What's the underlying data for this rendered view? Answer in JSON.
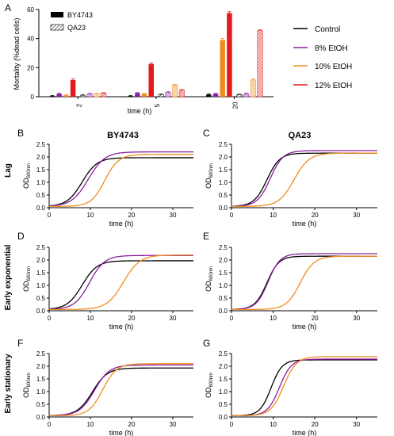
{
  "colors": {
    "control": "#000000",
    "etoh8": "#8B1E9E",
    "etoh10": "#F08C1E",
    "etoh12": "#E41A1C",
    "etoh8_light": "#E3C3EA",
    "etoh10_light": "#FBE0C0",
    "etoh12_light": "#F6C3C3",
    "axis": "#000000"
  },
  "legend_treatments": [
    {
      "label": "Control",
      "color_key": "control"
    },
    {
      "label": "8% EtOH",
      "color_key": "etoh8"
    },
    {
      "label": "10% EtOH",
      "color_key": "etoh10"
    },
    {
      "label": "12% EtOH",
      "color_key": "etoh12"
    }
  ],
  "chart_data": [
    {
      "id": "A",
      "panel_letter": "A",
      "type": "bar",
      "ylabel": "Mortality (%dead cells)",
      "xlabel": "time (h)",
      "ylim": [
        0,
        60
      ],
      "yticks": [
        0,
        20,
        40,
        60
      ],
      "categories": [
        "2",
        "5",
        "20"
      ],
      "strain_legend": [
        {
          "label": "BY4743",
          "pattern": "solid"
        },
        {
          "label": "QA23",
          "pattern": "hatched"
        }
      ],
      "series": [
        {
          "strain": "BY4743",
          "treatment": "Control",
          "values": [
            0.5,
            0.5,
            1.5
          ],
          "errors": [
            0.3,
            0.3,
            0.5
          ]
        },
        {
          "strain": "BY4743",
          "treatment": "8% EtOH",
          "values": [
            2,
            2.5,
            2
          ],
          "errors": [
            0.4,
            0.4,
            0.4
          ]
        },
        {
          "strain": "BY4743",
          "treatment": "10% EtOH",
          "values": [
            1,
            2,
            39
          ],
          "errors": [
            0.3,
            0.4,
            1
          ]
        },
        {
          "strain": "BY4743",
          "treatment": "12% EtOH",
          "values": [
            11.5,
            22.5,
            57.5
          ],
          "errors": [
            0.8,
            0.8,
            1
          ]
        },
        {
          "strain": "QA23",
          "treatment": "Control",
          "values": [
            1,
            1.5,
            1.5
          ],
          "errors": [
            0.3,
            0.3,
            0.3
          ]
        },
        {
          "strain": "QA23",
          "treatment": "8% EtOH",
          "values": [
            2,
            3,
            2
          ],
          "errors": [
            0.3,
            0.4,
            0.4
          ]
        },
        {
          "strain": "QA23",
          "treatment": "10% EtOH",
          "values": [
            2,
            8,
            11.5
          ],
          "errors": [
            0.3,
            0.5,
            0.6
          ]
        },
        {
          "strain": "QA23",
          "treatment": "12% EtOH",
          "values": [
            2.5,
            4.5,
            45.5
          ],
          "errors": [
            0.3,
            0.4,
            0.5
          ]
        }
      ]
    },
    {
      "id": "B",
      "panel_letter": "B",
      "type": "line",
      "title": "BY4743",
      "row_label": "Lag",
      "xlabel": "time (h)",
      "xlim": [
        0,
        35
      ],
      "xticks": [
        0,
        10,
        20,
        30
      ],
      "ylim": [
        0,
        2.5
      ],
      "yticks": [
        0.0,
        0.5,
        1.0,
        1.5,
        2.0,
        2.5
      ],
      "series": [
        {
          "name": "Control",
          "logistic": {
            "base": 0.05,
            "top": 1.97,
            "midpoint": 8.0,
            "rate": 0.55
          }
        },
        {
          "name": "8% EtOH",
          "logistic": {
            "base": 0.05,
            "top": 2.2,
            "midpoint": 9.5,
            "rate": 0.5
          }
        },
        {
          "name": "10% EtOH",
          "logistic": {
            "base": 0.05,
            "top": 2.1,
            "midpoint": 13.5,
            "rate": 0.6
          }
        }
      ]
    },
    {
      "id": "C",
      "panel_letter": "C",
      "type": "line",
      "title": "QA23",
      "xlabel": "time (h)",
      "xlim": [
        0,
        35
      ],
      "xticks": [
        0,
        10,
        20,
        30
      ],
      "ylim": [
        0,
        2.5
      ],
      "yticks": [
        0.0,
        0.5,
        1.0,
        1.5,
        2.0,
        2.5
      ],
      "series": [
        {
          "name": "Control",
          "logistic": {
            "base": 0.05,
            "top": 2.15,
            "midpoint": 8.5,
            "rate": 0.65
          }
        },
        {
          "name": "8% EtOH",
          "logistic": {
            "base": 0.05,
            "top": 2.25,
            "midpoint": 9.3,
            "rate": 0.65
          }
        },
        {
          "name": "10% EtOH",
          "logistic": {
            "base": 0.05,
            "top": 2.15,
            "midpoint": 15.0,
            "rate": 0.55
          }
        }
      ]
    },
    {
      "id": "D",
      "panel_letter": "D",
      "type": "line",
      "row_label": "Early exponential",
      "xlabel": "time (h)",
      "xlim": [
        0,
        35
      ],
      "xticks": [
        0,
        10,
        20,
        30
      ],
      "ylim": [
        0,
        2.5
      ],
      "yticks": [
        0.0,
        0.5,
        1.0,
        1.5,
        2.0,
        2.5
      ],
      "series": [
        {
          "name": "Control",
          "logistic": {
            "base": 0.05,
            "top": 1.97,
            "midpoint": 8.0,
            "rate": 0.55
          }
        },
        {
          "name": "8% EtOH",
          "logistic": {
            "base": 0.05,
            "top": 2.18,
            "midpoint": 9.8,
            "rate": 0.55
          }
        },
        {
          "name": "10% EtOH",
          "logistic": {
            "base": 0.05,
            "top": 2.2,
            "midpoint": 18.0,
            "rate": 0.5
          }
        }
      ]
    },
    {
      "id": "E",
      "panel_letter": "E",
      "type": "line",
      "xlabel": "time (h)",
      "xlim": [
        0,
        35
      ],
      "xticks": [
        0,
        10,
        20,
        30
      ],
      "ylim": [
        0,
        2.5
      ],
      "yticks": [
        0.0,
        0.5,
        1.0,
        1.5,
        2.0,
        2.5
      ],
      "series": [
        {
          "name": "Control",
          "logistic": {
            "base": 0.05,
            "top": 2.15,
            "midpoint": 8.5,
            "rate": 0.7
          }
        },
        {
          "name": "8% EtOH",
          "logistic": {
            "base": 0.05,
            "top": 2.25,
            "midpoint": 8.8,
            "rate": 0.7
          }
        },
        {
          "name": "10% EtOH",
          "logistic": {
            "base": 0.05,
            "top": 2.15,
            "midpoint": 16.5,
            "rate": 0.6
          }
        }
      ]
    },
    {
      "id": "F",
      "panel_letter": "F",
      "type": "line",
      "row_label": "Early stationary",
      "xlabel": "time (h)",
      "xlim": [
        0,
        35
      ],
      "xticks": [
        0,
        10,
        20,
        30
      ],
      "ylim": [
        0,
        2.5
      ],
      "yticks": [
        0.0,
        0.5,
        1.0,
        1.5,
        2.0,
        2.5
      ],
      "series": [
        {
          "name": "Control",
          "logistic": {
            "base": 0.05,
            "top": 1.93,
            "midpoint": 10.5,
            "rate": 0.55
          }
        },
        {
          "name": "8% EtOH",
          "logistic": {
            "base": 0.05,
            "top": 2.05,
            "midpoint": 11.0,
            "rate": 0.55
          }
        },
        {
          "name": "10% EtOH",
          "logistic": {
            "base": 0.05,
            "top": 2.1,
            "midpoint": 13.0,
            "rate": 0.6
          }
        }
      ]
    },
    {
      "id": "G",
      "panel_letter": "G",
      "type": "line",
      "xlabel": "time (h)",
      "xlim": [
        0,
        35
      ],
      "xticks": [
        0,
        10,
        20,
        30
      ],
      "ylim": [
        0,
        2.5
      ],
      "yticks": [
        0.0,
        0.5,
        1.0,
        1.5,
        2.0,
        2.5
      ],
      "series": [
        {
          "name": "Control",
          "logistic": {
            "base": 0.05,
            "top": 2.25,
            "midpoint": 9.5,
            "rate": 0.75
          }
        },
        {
          "name": "8% EtOH",
          "logistic": {
            "base": 0.05,
            "top": 2.28,
            "midpoint": 11.5,
            "rate": 0.7
          }
        },
        {
          "name": "10% EtOH",
          "logistic": {
            "base": 0.05,
            "top": 2.38,
            "midpoint": 12.5,
            "rate": 0.65
          }
        }
      ]
    }
  ],
  "od_label": {
    "prefix": "OD",
    "subscript": "600nm"
  }
}
